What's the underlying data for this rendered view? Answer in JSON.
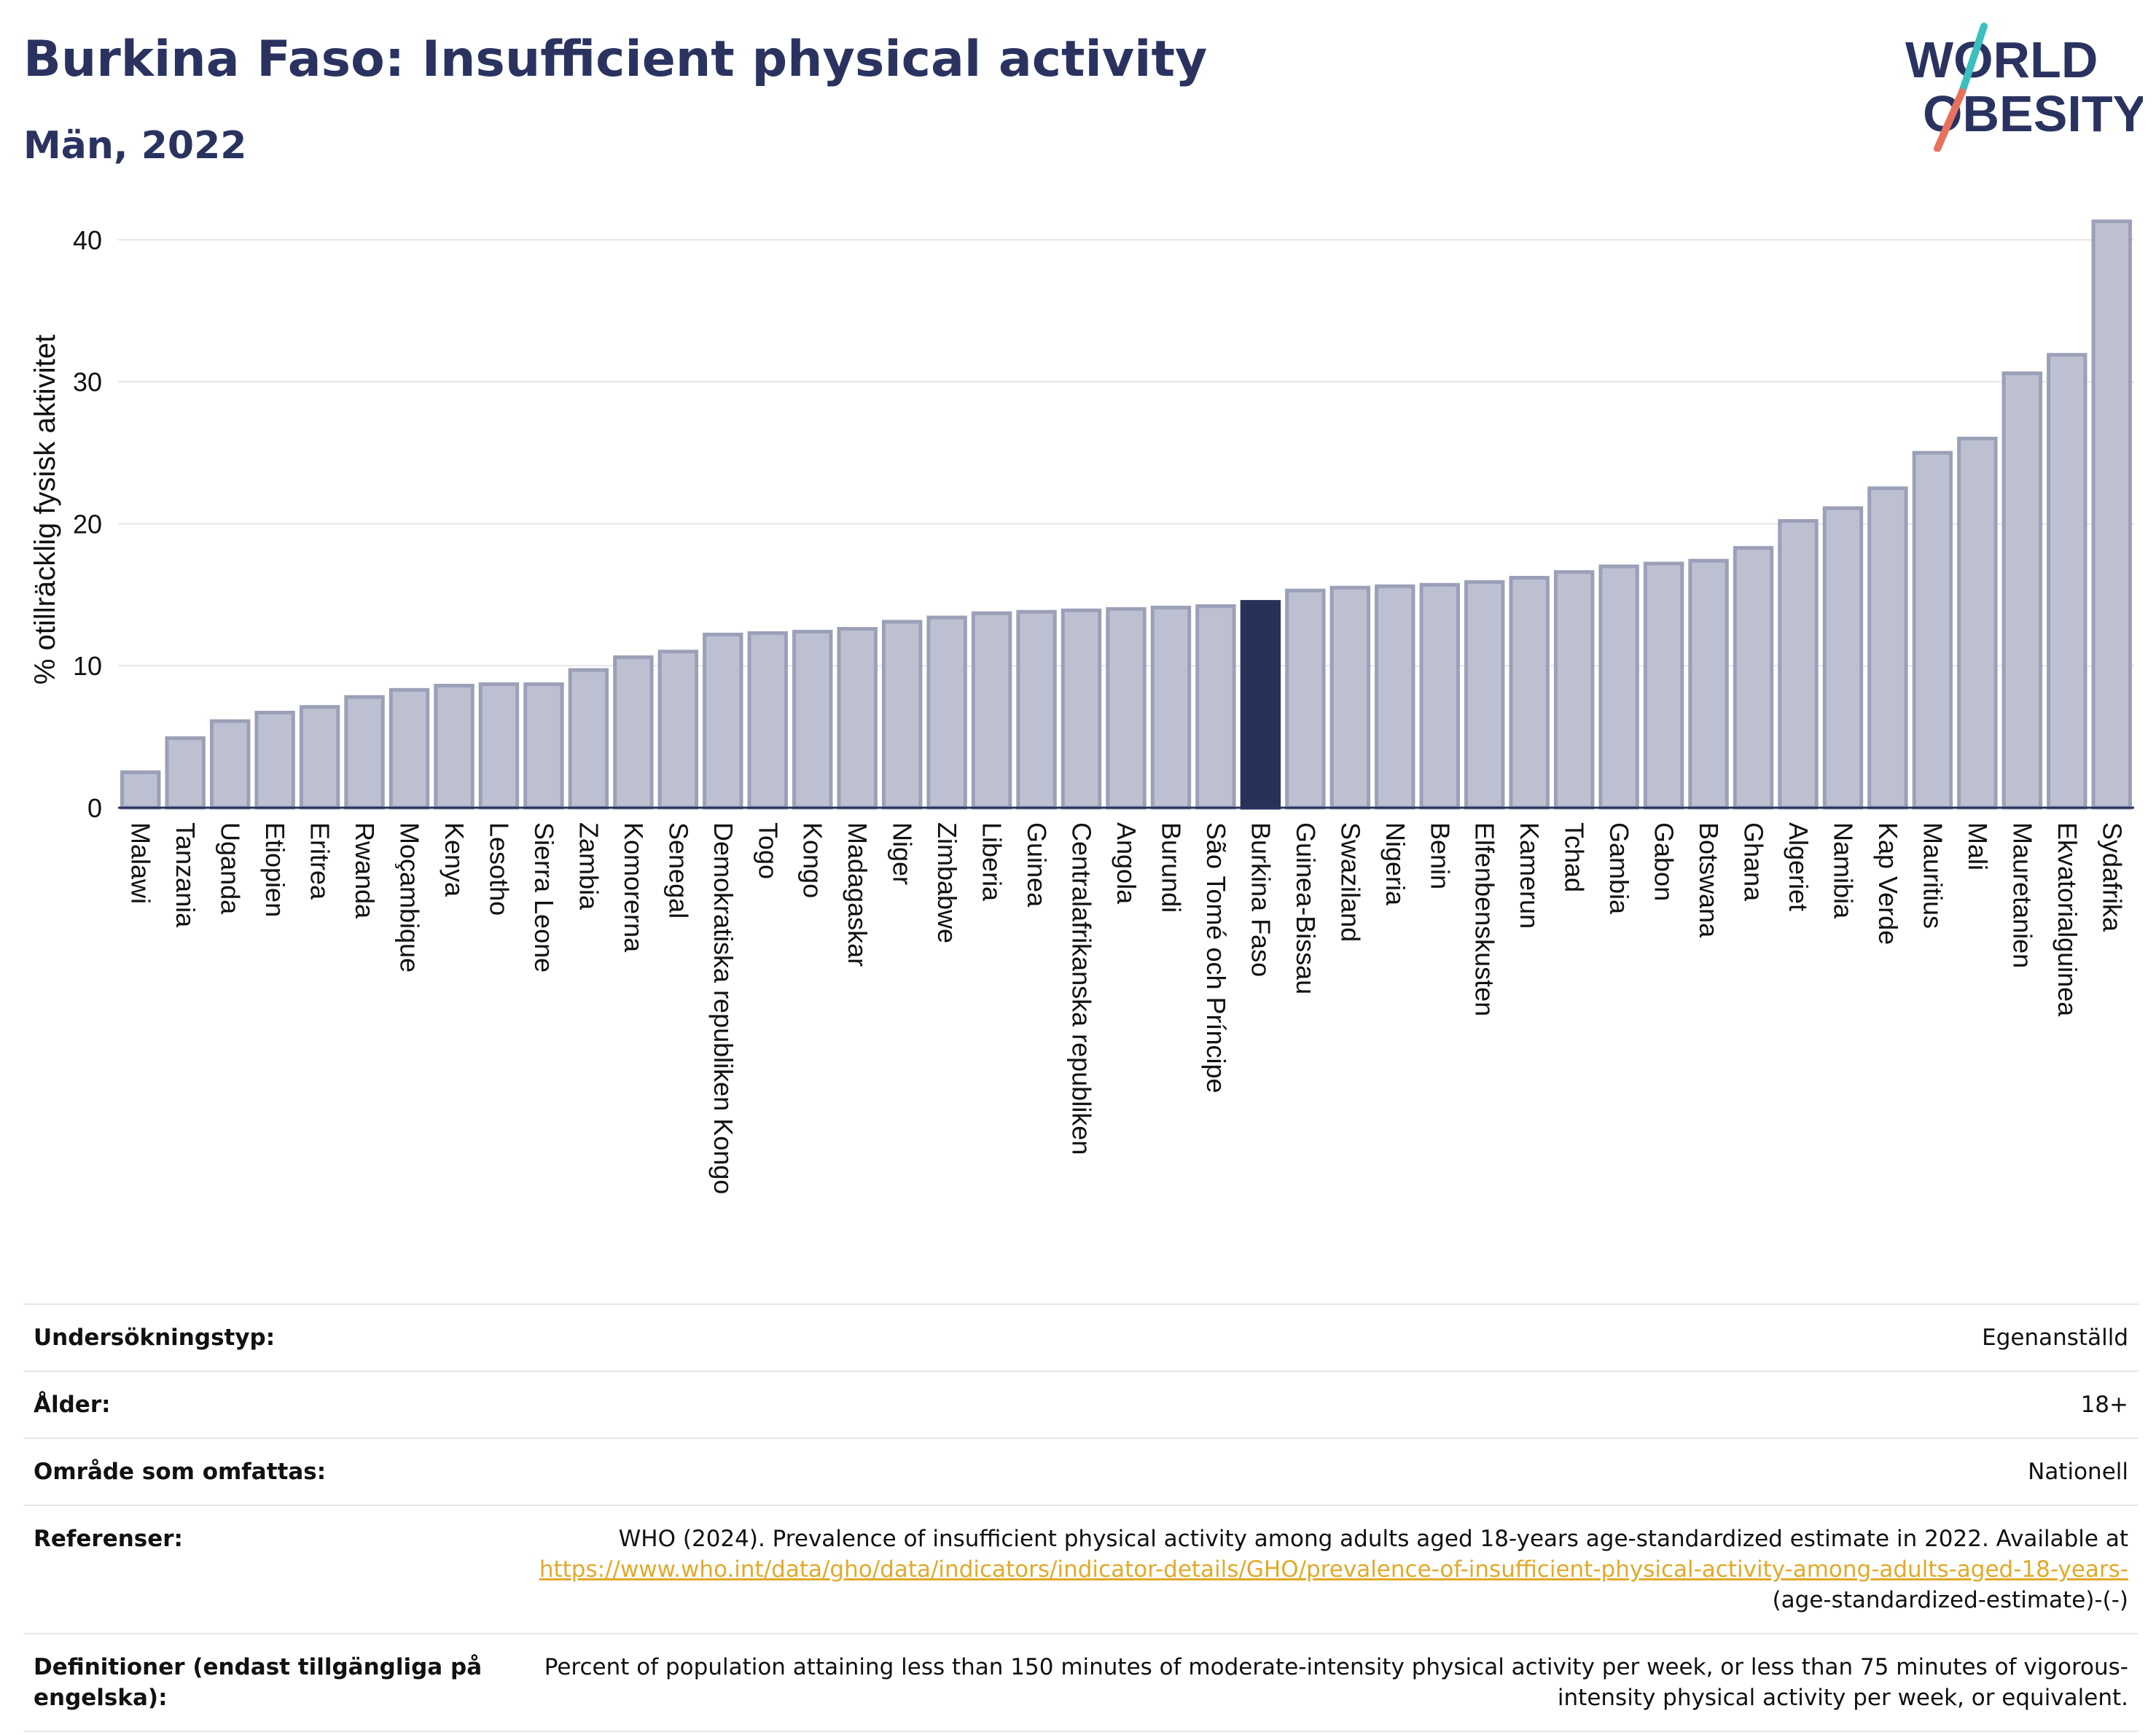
{
  "header": {
    "title": "Burkina Faso: Insufficient physical activity",
    "subtitle": "Män, 2022"
  },
  "logo": {
    "line1": "WORLD",
    "line2": "OBESITY"
  },
  "chart_data": {
    "type": "bar",
    "ylabel": "% otillräcklig fysisk aktivitet",
    "xlabel": "",
    "ylim": [
      0,
      42
    ],
    "yticks": [
      0,
      10,
      20,
      30,
      40
    ],
    "grid": true,
    "highlight": "Burkina Faso",
    "colors": {
      "bar": "#bcc0d0",
      "bar_edge": "#9ba0b8",
      "highlight": "#283258",
      "grid": "#e6e6ea",
      "axis": "#2a3360"
    },
    "categories": [
      "Malawi",
      "Tanzania",
      "Uganda",
      "Etiopien",
      "Eritrea",
      "Rwanda",
      "Moçambique",
      "Kenya",
      "Lesotho",
      "Sierra Leone",
      "Zambia",
      "Komorerna",
      "Senegal",
      "Demokratiska republiken Kongo",
      "Togo",
      "Kongo",
      "Madagaskar",
      "Niger",
      "Zimbabwe",
      "Liberia",
      "Guinea",
      "Centralafrikanska republiken",
      "Angola",
      "Burundi",
      "São Tomé och Príncipe",
      "Burkina Faso",
      "Guinea-Bissau",
      "Swaziland",
      "Nigeria",
      "Benin",
      "Elfenbenskusten",
      "Kamerun",
      "Tchad",
      "Gambia",
      "Gabon",
      "Botswana",
      "Ghana",
      "Algeriet",
      "Namibia",
      "Kap Verde",
      "Mauritius",
      "Mali",
      "Mauretanien",
      "Ekvatorialguinea",
      "Sydafrika"
    ],
    "values": [
      2.5,
      4.9,
      6.1,
      6.7,
      7.1,
      7.8,
      8.3,
      8.6,
      8.7,
      8.7,
      9.7,
      10.6,
      11.0,
      12.2,
      12.3,
      12.4,
      12.6,
      13.1,
      13.4,
      13.7,
      13.8,
      13.9,
      14.0,
      14.1,
      14.2,
      14.5,
      15.3,
      15.5,
      15.6,
      15.7,
      15.9,
      16.2,
      16.6,
      17.0,
      17.2,
      17.4,
      18.3,
      20.2,
      21.1,
      22.5,
      25.0,
      26.0,
      30.6,
      31.9,
      41.3
    ]
  },
  "info": [
    {
      "label": "Undersökningstyp:",
      "value": "Egenanställd"
    },
    {
      "label": "Ålder:",
      "value": "18+"
    },
    {
      "label": "Område som omfattas:",
      "value": "Nationell"
    },
    {
      "label": "Referenser:",
      "value_pre": "WHO (2024). Prevalence of insufficient physical activity among adults aged 18-years age-standardized estimate in 2022. Available at",
      "link": "https://www.who.int/data/gho/data/indicators/indicator-details/GHO/prevalence-of-insufficient-physical-activity-among-adults-aged-18-years-",
      "value_post": "(age-standardized-estimate)-(-)"
    },
    {
      "label": "Definitioner (endast tillgängliga på engelska):",
      "value": "Percent of population attaining less than 150 minutes of moderate-intensity physical activity per week, or less than 75 minutes of vigorous-intensity physical activity per week, or equivalent."
    }
  ]
}
